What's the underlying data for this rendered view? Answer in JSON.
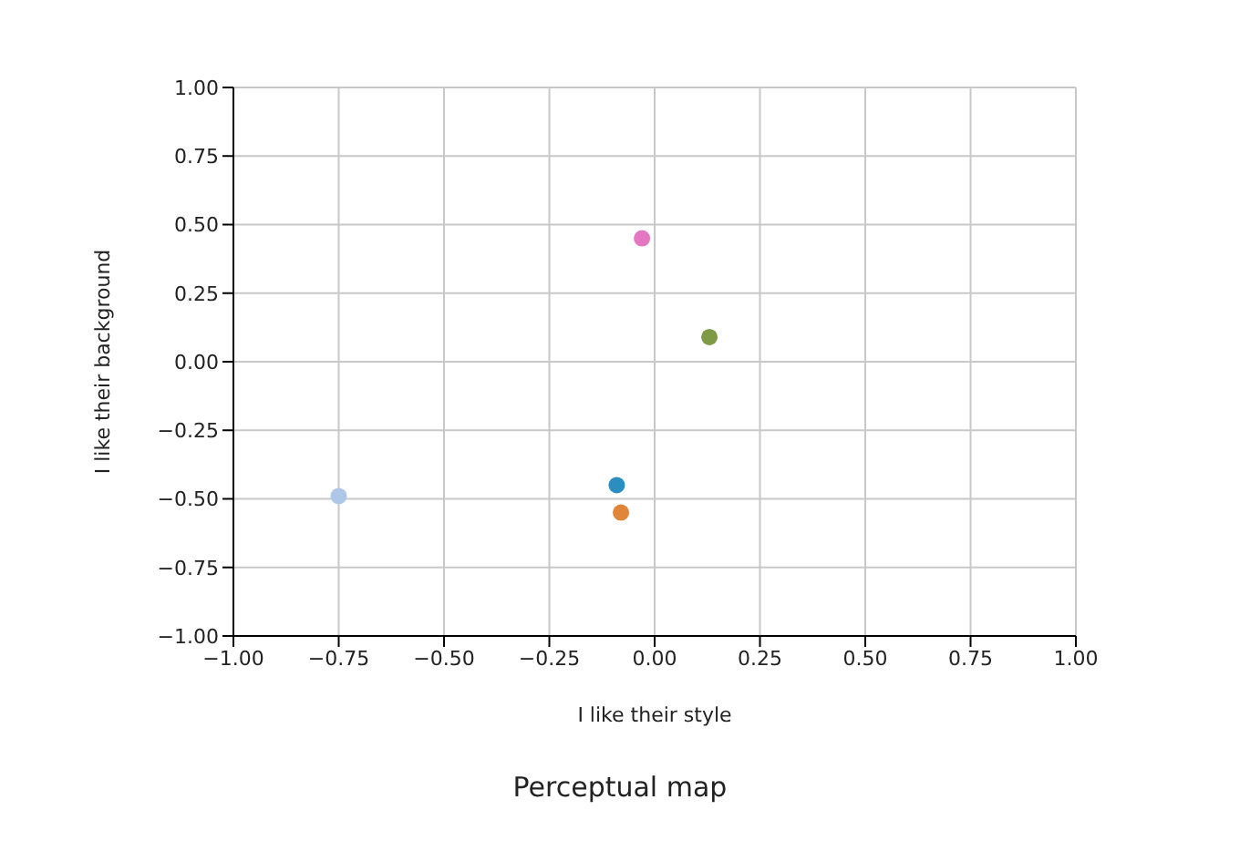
{
  "chart_data": {
    "type": "scatter",
    "title": "Perceptual map",
    "xlabel": "I like their style",
    "ylabel": "I like their background",
    "xlim": [
      -1,
      1
    ],
    "ylim": [
      -1,
      1
    ],
    "xticks": [
      {
        "value": -1,
        "label": "−1.00"
      },
      {
        "value": -0.75,
        "label": "−0.75"
      },
      {
        "value": -0.5,
        "label": "−0.50"
      },
      {
        "value": -0.25,
        "label": "−0.25"
      },
      {
        "value": 0,
        "label": "0.00"
      },
      {
        "value": 0.25,
        "label": "0.25"
      },
      {
        "value": 0.5,
        "label": "0.50"
      },
      {
        "value": 0.75,
        "label": "0.75"
      },
      {
        "value": 1,
        "label": "1.00"
      }
    ],
    "yticks": [
      {
        "value": -1,
        "label": "−1.00"
      },
      {
        "value": -0.75,
        "label": "−0.75"
      },
      {
        "value": -0.5,
        "label": "−0.50"
      },
      {
        "value": -0.25,
        "label": "−0.25"
      },
      {
        "value": 0,
        "label": "0.00"
      },
      {
        "value": 0.25,
        "label": "0.25"
      },
      {
        "value": 0.5,
        "label": "0.50"
      },
      {
        "value": 0.75,
        "label": "0.75"
      },
      {
        "value": 1,
        "label": "1.00"
      }
    ],
    "grid": true,
    "marker": "circle",
    "series": [
      {
        "color": "#aec7e8",
        "x": [
          -0.75
        ],
        "values": [
          -0.49
        ]
      },
      {
        "color": "#e377c2",
        "x": [
          -0.03
        ],
        "values": [
          0.45
        ]
      },
      {
        "color": "#7f9a45",
        "x": [
          0.13
        ],
        "values": [
          0.09
        ]
      },
      {
        "color": "#2a8fc0",
        "x": [
          -0.09
        ],
        "values": [
          -0.45
        ]
      },
      {
        "color": "#e0863a",
        "x": [
          -0.08
        ],
        "values": [
          -0.55
        ]
      }
    ]
  }
}
